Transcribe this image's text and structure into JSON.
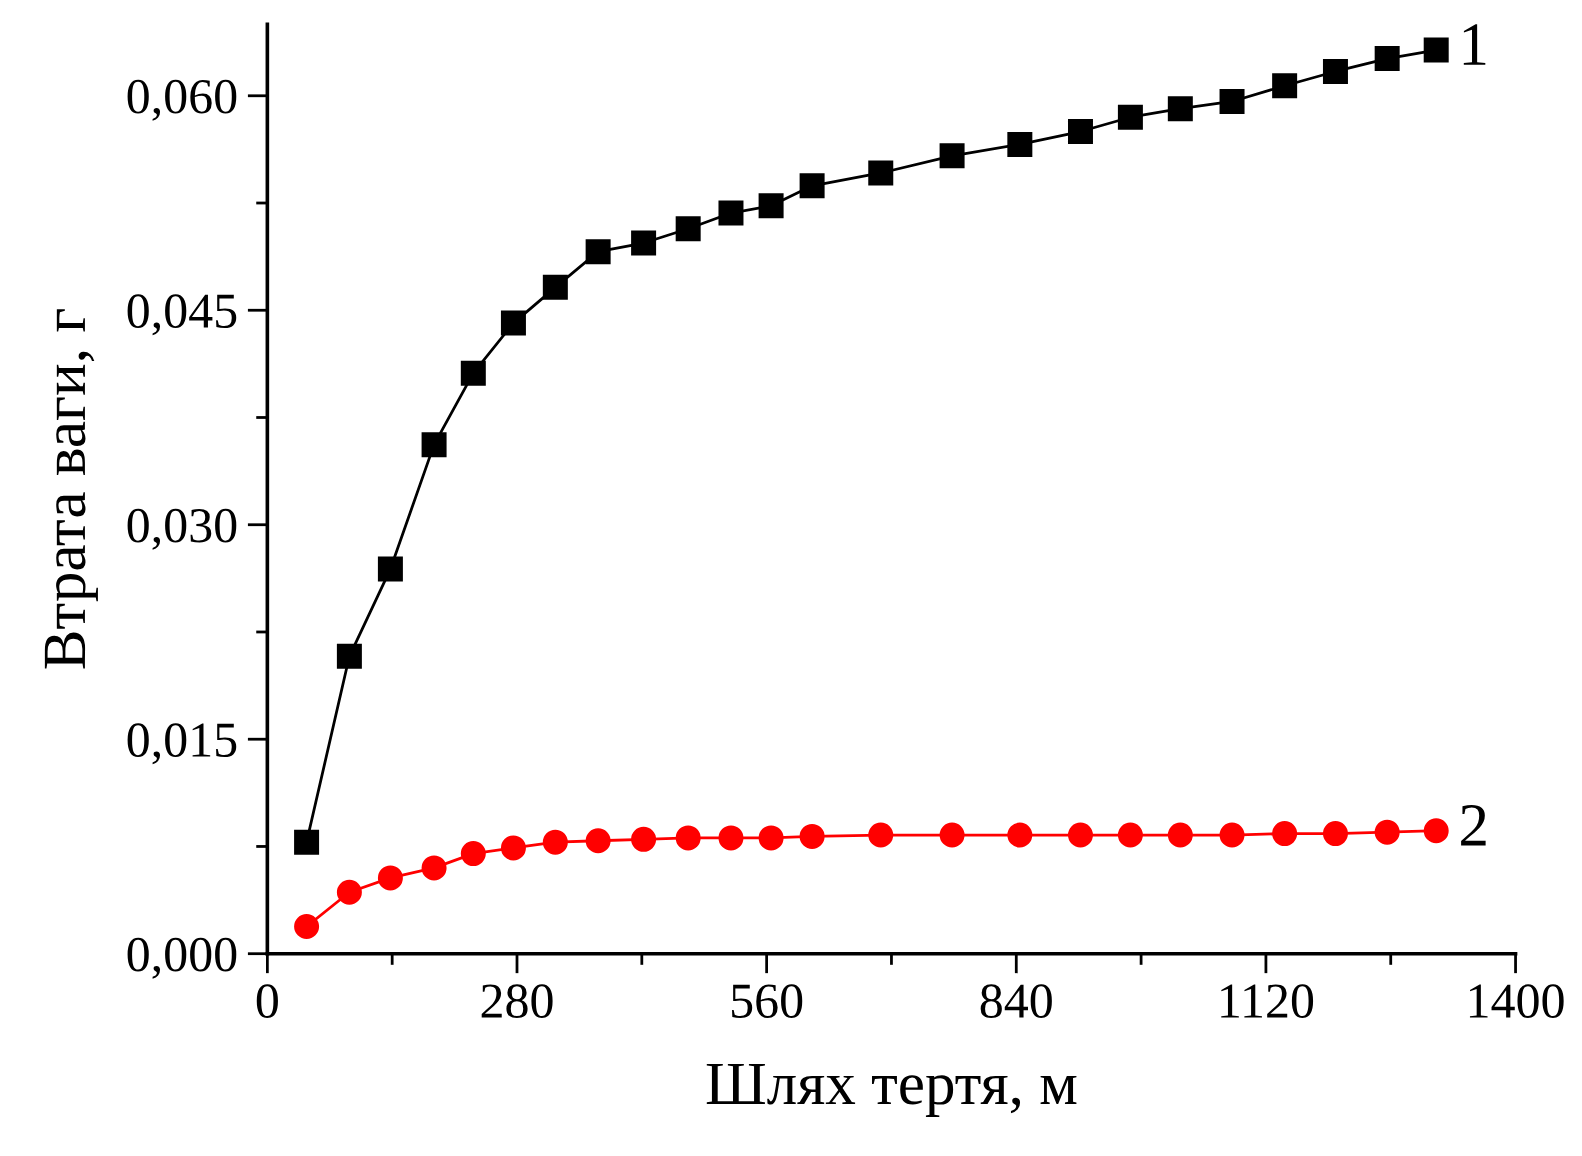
{
  "chart_data": {
    "type": "line",
    "xlabel": "Шлях тертя, м",
    "ylabel": "Втрата ваги, г",
    "x": [
      44,
      92,
      138,
      187,
      231,
      276,
      323,
      371,
      422,
      472,
      520,
      565,
      611,
      688,
      768,
      844,
      912,
      968,
      1024,
      1082,
      1141,
      1198,
      1256,
      1311
    ],
    "series": [
      {
        "name": "1",
        "color": "#000000",
        "marker": "square",
        "values": [
          0.0078,
          0.0208,
          0.0269,
          0.0356,
          0.0406,
          0.0441,
          0.0466,
          0.0491,
          0.0497,
          0.0507,
          0.0518,
          0.0523,
          0.0537,
          0.0546,
          0.0558,
          0.0566,
          0.0575,
          0.0585,
          0.0591,
          0.0596,
          0.0607,
          0.0617,
          0.0626,
          0.0632
        ]
      },
      {
        "name": "2",
        "color": "#ff0000",
        "marker": "circle",
        "values": [
          0.0019,
          0.0043,
          0.0053,
          0.006,
          0.007,
          0.0074,
          0.0078,
          0.0079,
          0.008,
          0.0081,
          0.0081,
          0.0081,
          0.0082,
          0.0083,
          0.0083,
          0.0083,
          0.0083,
          0.0083,
          0.0083,
          0.0083,
          0.0084,
          0.0084,
          0.0085,
          0.0086
        ]
      }
    ],
    "xlim": [
      0,
      1400
    ],
    "xticks": [
      0,
      {
        "value": 140,
        "label": null
      },
      280,
      {
        "value": 420,
        "label": null
      },
      560,
      {
        "value": 700,
        "label": null
      },
      840,
      {
        "value": 980,
        "label": null
      },
      1120,
      {
        "value": 1260,
        "label": null
      },
      1400
    ],
    "ylim": [
      0,
      0.065
    ],
    "yticks": [
      {
        "value": 0,
        "label": "0,000"
      },
      {
        "value": 0.0075,
        "label": null
      },
      {
        "value": 0.015,
        "label": "0,015"
      },
      {
        "value": 0.0225,
        "label": null
      },
      {
        "value": 0.03,
        "label": "0,030"
      },
      {
        "value": 0.0375,
        "label": null
      },
      {
        "value": 0.045,
        "label": "0,045"
      },
      {
        "value": 0.0525,
        "label": null
      },
      {
        "value": 0.06,
        "label": "0,060"
      }
    ],
    "grid": false,
    "legend": false,
    "line_style": "solid"
  }
}
